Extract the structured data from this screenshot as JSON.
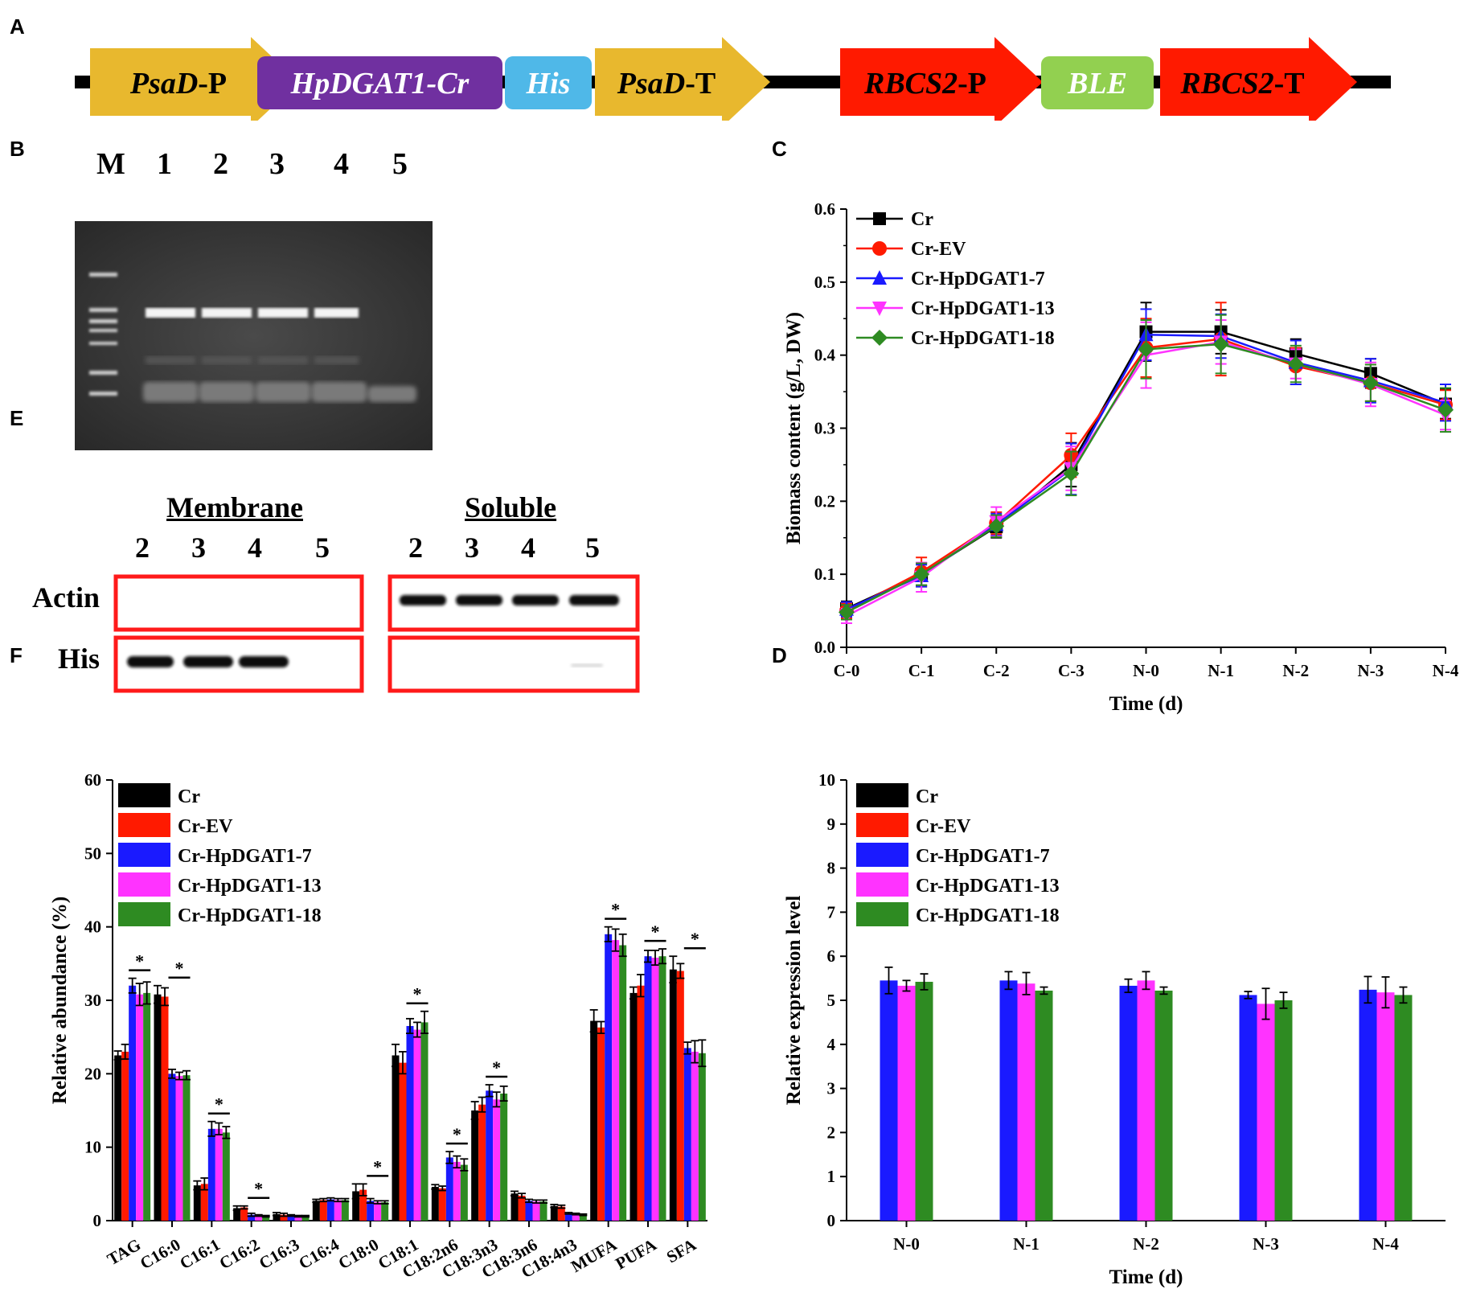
{
  "panels": {
    "A": "A",
    "B": "B",
    "C": "C",
    "D": "D",
    "E": "E",
    "F": "F"
  },
  "construct": {
    "elements": [
      {
        "label": "PsaD",
        "suffix": "-P",
        "italic": true,
        "color": "#E8B82E"
      },
      {
        "label": "HpDGAT1-Cr",
        "suffix": "",
        "italic": true,
        "color": "#7030A0"
      },
      {
        "label": "His",
        "suffix": "",
        "italic": true,
        "color": "#4FB8E8"
      },
      {
        "label": "PsaD",
        "suffix": "-T",
        "italic": true,
        "color": "#E8B82E"
      },
      {
        "label": "RBCS2",
        "suffix": "-P",
        "italic": true,
        "color": "#FF1A00"
      },
      {
        "label": "BLE",
        "suffix": "",
        "italic": true,
        "color": "#92D050"
      },
      {
        "label": "RBCS2",
        "suffix": "-T",
        "italic": true,
        "color": "#FF1A00"
      }
    ]
  },
  "gel": {
    "lanes": [
      "M",
      "1",
      "2",
      "3",
      "4",
      "5"
    ]
  },
  "western": {
    "membrane_title": "Membrane",
    "soluble_title": "Soluble",
    "lanes": [
      "2",
      "3",
      "4",
      "5"
    ],
    "rows": [
      "Actin",
      "His"
    ]
  },
  "legend_series": [
    {
      "name": "Cr",
      "color": "#000000"
    },
    {
      "name": "Cr-EV",
      "color": "#FF1A00"
    },
    {
      "name": "Cr-HpDGAT1-7",
      "color": "#1A1AFF"
    },
    {
      "name": "Cr-HpDGAT1-13",
      "color": "#FF33FF"
    },
    {
      "name": "Cr-HpDGAT1-18",
      "color": "#2E8B22"
    }
  ],
  "chart_data": [
    {
      "id": "C",
      "type": "line",
      "title": "",
      "xlabel": "Time (d)",
      "ylabel": "Biomass content (g/L, DW)",
      "ylim": [
        0,
        0.6
      ],
      "yticks": [
        "0.0",
        "0.1",
        "0.2",
        "0.3",
        "0.4",
        "0.5",
        "0.6"
      ],
      "categories": [
        "C-0",
        "C-1",
        "C-2",
        "C-3",
        "N-0",
        "N-1",
        "N-2",
        "N-3",
        "N-4"
      ],
      "series": [
        {
          "name": "Cr",
          "values": [
            0.053,
            0.1,
            0.165,
            0.25,
            0.432,
            0.432,
            0.402,
            0.375,
            0.333
          ],
          "errors": [
            0.01,
            0.015,
            0.015,
            0.03,
            0.04,
            0.03,
            0.02,
            0.02,
            0.02
          ]
        },
        {
          "name": "Cr-EV",
          "values": [
            0.05,
            0.103,
            0.17,
            0.263,
            0.41,
            0.422,
            0.385,
            0.362,
            0.332
          ],
          "errors": [
            0.01,
            0.02,
            0.015,
            0.03,
            0.04,
            0.05,
            0.025,
            0.025,
            0.02
          ]
        },
        {
          "name": "Cr-HpDGAT1-7",
          "values": [
            0.052,
            0.098,
            0.168,
            0.244,
            0.428,
            0.426,
            0.39,
            0.365,
            0.335
          ],
          "errors": [
            0.01,
            0.015,
            0.015,
            0.035,
            0.035,
            0.03,
            0.03,
            0.03,
            0.025
          ]
        },
        {
          "name": "Cr-HpDGAT1-13",
          "values": [
            0.043,
            0.096,
            0.172,
            0.245,
            0.4,
            0.418,
            0.388,
            0.36,
            0.318
          ],
          "errors": [
            0.01,
            0.02,
            0.02,
            0.03,
            0.045,
            0.03,
            0.02,
            0.03,
            0.02
          ]
        },
        {
          "name": "Cr-HpDGAT1-18",
          "values": [
            0.048,
            0.1,
            0.166,
            0.238,
            0.408,
            0.415,
            0.388,
            0.362,
            0.325
          ],
          "errors": [
            0.01,
            0.015,
            0.015,
            0.03,
            0.04,
            0.04,
            0.025,
            0.025,
            0.03
          ]
        }
      ]
    },
    {
      "id": "D",
      "type": "bar",
      "title": "",
      "xlabel": "Time (d)",
      "ylabel": "Relative expression level",
      "ylim": [
        0,
        10
      ],
      "yticks": [
        "0",
        "1",
        "2",
        "3",
        "4",
        "5",
        "6",
        "7",
        "8",
        "9",
        "10"
      ],
      "categories": [
        "N-0",
        "N-1",
        "N-2",
        "N-3",
        "N-4"
      ],
      "series": [
        {
          "name": "Cr-HpDGAT1-7",
          "values": [
            5.45,
            5.45,
            5.33,
            5.12,
            5.24
          ],
          "errors": [
            0.3,
            0.2,
            0.15,
            0.08,
            0.3
          ]
        },
        {
          "name": "Cr-HpDGAT1-13",
          "values": [
            5.33,
            5.38,
            5.45,
            4.92,
            5.18
          ],
          "errors": [
            0.12,
            0.25,
            0.2,
            0.35,
            0.35
          ]
        },
        {
          "name": "Cr-HpDGAT1-18",
          "values": [
            5.42,
            5.22,
            5.22,
            5.0,
            5.12
          ],
          "errors": [
            0.18,
            0.08,
            0.08,
            0.18,
            0.18
          ]
        }
      ]
    },
    {
      "id": "F",
      "type": "bar",
      "title": "",
      "xlabel": "",
      "ylabel": "Relative abundance (%)",
      "ylim": [
        0,
        60
      ],
      "yticks": [
        "0",
        "10",
        "20",
        "30",
        "40",
        "50",
        "60"
      ],
      "categories": [
        "TAG",
        "C16:0",
        "C16:1",
        "C16:2",
        "C16:3",
        "C16:4",
        "C18:0",
        "C18:1",
        "C18:2n6",
        "C18:3n3",
        "C18:3n6",
        "C18:4n3",
        "MUFA",
        "PUFA",
        "SFA"
      ],
      "significance": [
        "*",
        "*",
        "*",
        "*",
        "",
        "",
        "*",
        "*",
        "*",
        "*",
        "",
        "",
        "*",
        "*",
        "*"
      ],
      "series": [
        {
          "name": "Cr",
          "values": [
            22.5,
            30.8,
            4.8,
            1.7,
            0.9,
            2.7,
            4.0,
            22.5,
            4.6,
            15.0,
            3.7,
            2.0,
            27.2,
            31.0,
            34.2
          ],
          "errors": [
            0.6,
            1.2,
            0.6,
            0.3,
            0.2,
            0.2,
            1.0,
            1.5,
            0.3,
            1.2,
            0.3,
            0.2,
            1.5,
            0.8,
            1.8
          ]
        },
        {
          "name": "Cr-EV",
          "values": [
            23.0,
            30.5,
            5.0,
            1.8,
            0.8,
            2.8,
            4.2,
            21.5,
            4.4,
            15.8,
            3.4,
            1.9,
            26.3,
            32.0,
            34.0
          ],
          "errors": [
            1.0,
            1.2,
            0.8,
            0.2,
            0.2,
            0.2,
            0.8,
            1.5,
            0.3,
            1.0,
            0.3,
            0.2,
            0.8,
            1.5,
            1.0
          ]
        },
        {
          "name": "Cr-HpDGAT1-7",
          "values": [
            32.0,
            20.0,
            12.5,
            0.8,
            0.7,
            2.9,
            2.7,
            26.5,
            8.6,
            17.7,
            2.7,
            1.0,
            39.0,
            36.0,
            23.5
          ],
          "errors": [
            1.0,
            0.6,
            1.0,
            0.2,
            0.1,
            0.2,
            0.3,
            1.0,
            0.8,
            0.8,
            0.2,
            0.1,
            1.0,
            0.8,
            0.8
          ]
        },
        {
          "name": "Cr-HpDGAT1-13",
          "values": [
            30.8,
            19.7,
            12.5,
            0.7,
            0.6,
            2.8,
            2.5,
            26.0,
            8.0,
            16.5,
            2.6,
            0.9,
            38.2,
            35.8,
            23.0
          ],
          "errors": [
            1.5,
            0.5,
            0.8,
            0.1,
            0.1,
            0.2,
            0.2,
            1.0,
            0.8,
            1.0,
            0.2,
            0.1,
            1.5,
            1.0,
            1.5
          ]
        },
        {
          "name": "Cr-HpDGAT1-18",
          "values": [
            31.0,
            19.8,
            12.0,
            0.6,
            0.6,
            2.8,
            2.5,
            27.0,
            7.6,
            17.3,
            2.6,
            0.8,
            37.5,
            36.0,
            22.8
          ],
          "errors": [
            1.5,
            0.6,
            0.8,
            0.1,
            0.1,
            0.2,
            0.2,
            1.5,
            0.8,
            1.0,
            0.2,
            0.1,
            1.5,
            1.0,
            1.8
          ]
        }
      ]
    }
  ]
}
